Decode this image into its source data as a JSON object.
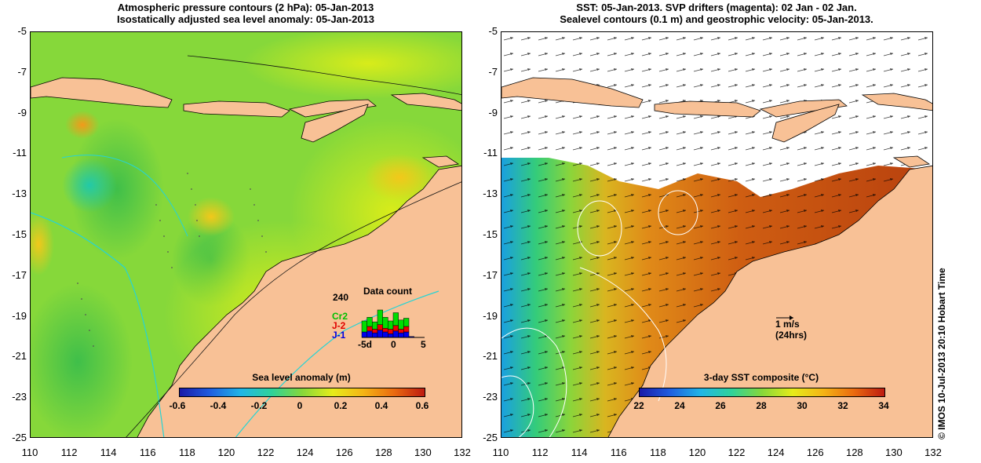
{
  "left": {
    "title_line1": "Atmospheric pressure contours (2 hPa): 05-Jan-2013",
    "title_line2": "Isostatically adjusted sea level anomaly: 05-Jan-2013",
    "colorbar_label": "Sea level anomaly (m)",
    "colorbar_ticks": [
      "-0.6",
      "-0.4",
      "-0.2",
      "0",
      "0.2",
      "0.4",
      "0.6"
    ],
    "inset": {
      "title": "Data count",
      "ymax_label": "240",
      "legend": [
        {
          "name": "Cr2",
          "color": "#00dd00"
        },
        {
          "name": "J-2",
          "color": "#ee0000"
        },
        {
          "name": "J-1",
          "color": "#0000ee"
        }
      ],
      "x_ticks": [
        "-5d",
        "0",
        "5"
      ],
      "chart_data": {
        "type": "bar",
        "x": [
          -6,
          -5,
          -4,
          -3,
          -2,
          -1,
          0,
          1,
          2,
          3,
          4,
          5
        ],
        "series": [
          {
            "name": "J-1",
            "values": [
              30,
              35,
              25,
              40,
              30,
              20,
              35,
              25,
              30,
              5,
              0,
              0
            ]
          },
          {
            "name": "J-2",
            "values": [
              0,
              25,
              20,
              30,
              20,
              25,
              30,
              20,
              30,
              0,
              0,
              0
            ]
          },
          {
            "name": "Cr2",
            "values": [
              60,
              50,
              40,
              80,
              60,
              45,
              70,
              50,
              45,
              0,
              0,
              0
            ]
          }
        ],
        "ylim": [
          0,
          240
        ]
      }
    }
  },
  "right": {
    "title_line1": "SST: 05-Jan-2013. SVP drifters (magenta): 02 Jan - 02 Jan.",
    "title_line2": "Sealevel contours (0.1 m) and geostrophic velocity: 05-Jan-2013.",
    "colorbar_label": "3-day SST composite (°C)",
    "colorbar_ticks": [
      "22",
      "24",
      "26",
      "28",
      "30",
      "32",
      "34"
    ],
    "scale_label_1": "1 m/s",
    "scale_label_2": "(24hrs)"
  },
  "axes": {
    "x_ticks": [
      "110",
      "112",
      "114",
      "116",
      "118",
      "120",
      "122",
      "124",
      "126",
      "128",
      "130",
      "132"
    ],
    "y_ticks": [
      "-5",
      "-7",
      "-9",
      "-11",
      "-13",
      "-15",
      "-17",
      "-19",
      "-21",
      "-23",
      "-25"
    ]
  },
  "credit": "© IMOS 10-Jul-2013 20:10 Hobart Time",
  "colors": {
    "land": "#f8c196",
    "ocean_green": "#7cd63a",
    "ocean_yellow": "#d9ee1c",
    "sst_orange": "#d36b14",
    "contour_cyan": "#26d4d4"
  },
  "chart_data": [
    {
      "type": "heatmap",
      "title": "Atmospheric pressure contours (2 hPa): 05-Jan-2013 / Isostatically adjusted sea level anomaly: 05-Jan-2013",
      "xlabel": "",
      "ylabel": "",
      "xlim": [
        110,
        132
      ],
      "ylim": [
        -25,
        -5
      ],
      "colorbar_label": "Sea level anomaly (m)",
      "colorbar_range": [
        -0.6,
        0.6
      ]
    },
    {
      "type": "heatmap",
      "title": "SST: 05-Jan-2013. SVP drifters (magenta): 02 Jan - 02 Jan. / Sealevel contours (0.1 m) and geostrophic velocity: 05-Jan-2013.",
      "xlabel": "",
      "ylabel": "",
      "xlim": [
        110,
        132
      ],
      "ylim": [
        -25,
        -5
      ],
      "colorbar_label": "3-day SST composite (°C)",
      "colorbar_range": [
        22,
        34
      ]
    }
  ]
}
